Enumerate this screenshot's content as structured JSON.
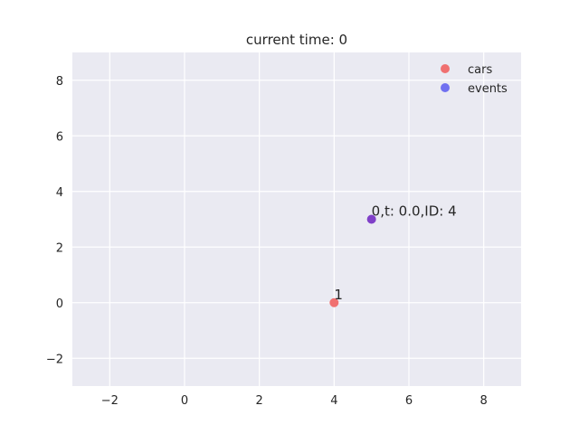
{
  "chart_data": {
    "type": "scatter",
    "title": "current time: 0",
    "xlabel": "",
    "ylabel": "",
    "xlim": [
      -3,
      9
    ],
    "ylim": [
      -3,
      9
    ],
    "xticks": [
      -2,
      0,
      2,
      4,
      6,
      8
    ],
    "yticks": [
      -2,
      0,
      2,
      4,
      6,
      8
    ],
    "grid": true,
    "legend_position": "top-right",
    "series": [
      {
        "name": "cars",
        "color": "#f07070",
        "points": [
          {
            "x": 4,
            "y": 0,
            "label": "1"
          }
        ]
      },
      {
        "name": "events",
        "color": "#7070f0",
        "points": [
          {
            "x": 5,
            "y": 3,
            "label": "0,t: 0.0,ID: 4"
          }
        ]
      }
    ],
    "style": {
      "background": "#eaeaf2",
      "grid_color": "#ffffff",
      "overlap_color": "#8040c8"
    }
  }
}
